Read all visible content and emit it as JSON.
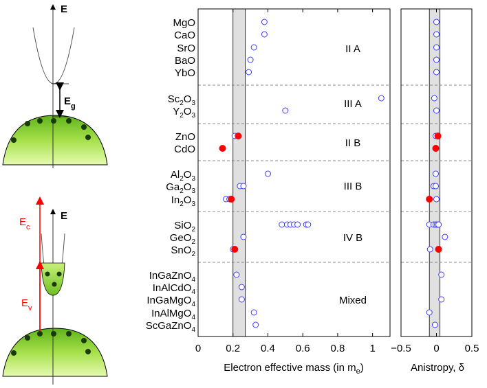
{
  "chart_data": [
    {
      "type": "scatter",
      "title": "",
      "xlabel": "Electron effective mass (in m",
      "xlabel_sub": "e",
      "xlabel_tail": ")",
      "xlim": [
        0,
        1.1
      ],
      "xticks": [
        "0",
        "0.2",
        "0.4",
        "0.6",
        "0.8",
        "1"
      ],
      "xtick_values": [
        0,
        0.2,
        0.4,
        0.6,
        0.8,
        1.0
      ],
      "shaded_band": [
        0.2,
        0.27
      ],
      "groups": [
        {
          "name": "II A",
          "materials": [
            "MgO",
            "CaO",
            "SrO",
            "BaO",
            "YbO"
          ]
        },
        {
          "name": "III A",
          "materials": [
            "Sc2O3",
            "Y2O3"
          ]
        },
        {
          "name": "II B",
          "materials": [
            "ZnO",
            "CdO"
          ]
        },
        {
          "name": "III B",
          "materials": [
            "Al2O3",
            "Ga2O3",
            "In2O3"
          ]
        },
        {
          "name": "IV B",
          "materials": [
            "SiO2",
            "GeO2",
            "SnO2"
          ]
        },
        {
          "name": "Mixed",
          "materials": [
            "InGaZnO4",
            "InAlCdO4",
            "InGaMgO4",
            "InAlMgO4",
            "ScGaZnO4"
          ]
        }
      ],
      "open_points": {
        "MgO": [
          0.38
        ],
        "CaO": [
          0.38
        ],
        "SrO": [
          0.32
        ],
        "BaO": [
          0.3
        ],
        "YbO": [
          0.29
        ],
        "Sc2O3": [
          1.05
        ],
        "Y2O3": [
          0.5
        ],
        "ZnO": [
          0.21
        ],
        "CdO": [],
        "Al2O3": [
          0.4
        ],
        "Ga2O3": [
          0.24,
          0.26
        ],
        "In2O3": [
          0.16,
          0.18
        ],
        "SiO2": [
          0.48,
          0.51,
          0.53,
          0.55,
          0.57,
          0.62,
          0.63
        ],
        "GeO2": [
          0.26
        ],
        "SnO2": [
          0.2
        ],
        "InGaZnO4": [
          0.22
        ],
        "InAlCdO4": [
          0.25
        ],
        "InGaMgO4": [
          0.25
        ],
        "InAlMgO4": [
          0.32
        ],
        "ScGaZnO4": [
          0.33
        ]
      },
      "filled_points": {
        "ZnO": [
          0.23
        ],
        "CdO": [
          0.14
        ],
        "In2O3": [
          0.19
        ],
        "SnO2": [
          0.21
        ]
      }
    },
    {
      "type": "scatter",
      "title": "",
      "xlabel": "Anistropy, δ",
      "xlim": [
        -0.5,
        0.5
      ],
      "xticks": [
        "−0.5",
        "0",
        "0.5"
      ],
      "xtick_values": [
        -0.5,
        0,
        0.5
      ],
      "shaded_band": [
        -0.1,
        0.05
      ],
      "open_points": {
        "MgO": [
          0
        ],
        "CaO": [
          0
        ],
        "SrO": [
          0
        ],
        "BaO": [
          0
        ],
        "YbO": [
          0
        ],
        "Sc2O3": [
          -0.03
        ],
        "Y2O3": [
          0
        ],
        "ZnO": [
          -0.01
        ],
        "CdO": [],
        "Al2O3": [
          -0.01
        ],
        "Ga2O3": [
          -0.04,
          -0.01
        ],
        "In2O3": [
          0
        ],
        "SiO2": [
          -0.1,
          -0.04,
          -0.01,
          0.01,
          0.03
        ],
        "GeO2": [
          0.12
        ],
        "SnO2": [
          -0.09
        ],
        "InGaZnO4": [
          0.07
        ],
        "InAlCdO4": [],
        "InGaMgO4": [
          0.07
        ],
        "InAlMgO4": [
          -0.1
        ],
        "ScGaZnO4": [
          -0.02
        ]
      },
      "filled_points": {
        "ZnO": [
          0.02
        ],
        "CdO": [
          -0.01
        ],
        "In2O3": [
          -0.1
        ],
        "SnO2": [
          0.03
        ]
      }
    }
  ],
  "diagram": {
    "top": {
      "axis_label": "E",
      "gap_label": "E",
      "gap_sub": "g"
    },
    "bottom": {
      "axis_label": "E",
      "ec_label": "E",
      "ec_sub": "c",
      "ev_label": "E",
      "ev_sub": "v"
    }
  },
  "colors": {
    "open_marker": "#3a3aff",
    "filled_marker": "#ff0000",
    "band": "#e0e0e0",
    "dome_top": "#7dcf1f",
    "dome_bottom": "#d9f79a",
    "arrow_red": "#ff0000"
  }
}
